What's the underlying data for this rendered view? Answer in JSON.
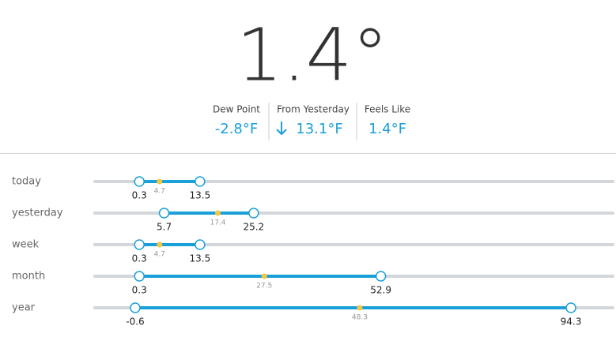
{
  "current": {
    "temperature": "1.4°"
  },
  "stats": [
    {
      "label": "Dew Point",
      "value": "-2.8°F"
    },
    {
      "label": "From Yesterday",
      "value": "13.1°F"
    },
    {
      "label": "Feels Like",
      "value": "1.4°F"
    }
  ],
  "ranges": [
    {
      "label": "today",
      "low": 0.3,
      "average": 4.7,
      "high": 13.5
    },
    {
      "label": "yesterday",
      "low": 5.7,
      "average": 17.4,
      "high": 25.2
    },
    {
      "label": "week",
      "low": 0.3,
      "average": 4.7,
      "high": 13.5
    },
    {
      "label": "month",
      "low": 0.3,
      "average": 27.5,
      "high": 52.9
    },
    {
      "label": "year",
      "low": -0.6,
      "average": 48.3,
      "high": 94.3
    }
  ]
}
